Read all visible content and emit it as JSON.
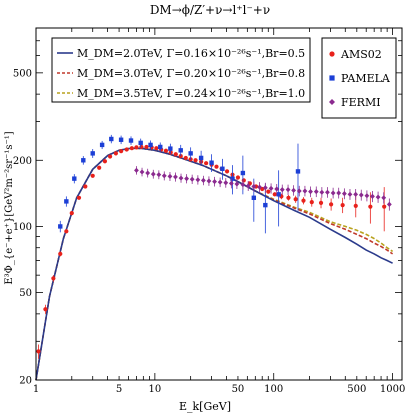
{
  "chart_data": {
    "type": "scatter",
    "title": "DM→ϕ/Z′+ν→l⁺l⁻+ν",
    "xlabel": "E_k[GeV]",
    "ylabel": "E³Φ_{e⁻+e⁺}[GeV²m⁻²sr⁻¹s⁻¹]",
    "xscale": "log",
    "yscale": "log",
    "xlim": [
      1,
      1200
    ],
    "ylim": [
      20,
      800
    ],
    "x_ticks": [
      1,
      5,
      10,
      50,
      100,
      500,
      1000
    ],
    "x_tick_labels": [
      "1",
      "5",
      "10",
      "50",
      "100",
      "500",
      "1000"
    ],
    "y_ticks": [
      20,
      50,
      100,
      200,
      500
    ],
    "y_tick_labels": [
      "20",
      "50",
      "100",
      "200",
      "500"
    ],
    "grid": false,
    "legend_model_lines": [
      {
        "text": "M_DM=2.0TeV, Γ=0.16×10⁻²⁶s⁻¹,Br=0.5",
        "color": "#2b3b8c",
        "dash": "solid"
      },
      {
        "text": "M_DM=3.0TeV, Γ=0.20×10⁻²⁶s⁻¹,Br=0.8",
        "color": "#c0392b",
        "dash": "dashed"
      },
      {
        "text": "M_DM=3.5TeV, Γ=0.24×10⁻²⁶s⁻¹,Br=1.0",
        "color": "#b9a21e",
        "dash": "dashed"
      }
    ],
    "legend_data": [
      {
        "text": "AMS02",
        "color": "#e8211b",
        "marker": "circle"
      },
      {
        "text": "PAMELA",
        "color": "#1c3fd6",
        "marker": "square"
      },
      {
        "text": "FERMI",
        "color": "#8b2a8f",
        "marker": "diamond"
      }
    ],
    "series": [
      {
        "name": "M_DM=3.5TeV, Γ=0.24×10⁻²⁶s⁻¹,Br=1.0",
        "kind": "line",
        "color": "#b9a21e",
        "dash": "dashed",
        "x": [
          1,
          1.3,
          1.7,
          2.2,
          3,
          4,
          5,
          6,
          7,
          8,
          10,
          13,
          17,
          20,
          25,
          30,
          40,
          50,
          70,
          100,
          150,
          200,
          300,
          400,
          500,
          600,
          700,
          800,
          900,
          1000
        ],
        "y": [
          20,
          48,
          88,
          135,
          182,
          210,
          222,
          226,
          227,
          226,
          222,
          214,
          204,
          198,
          190,
          182,
          170,
          160,
          145,
          133,
          122,
          116,
          105,
          100,
          96,
          92,
          88,
          84,
          80,
          77
        ]
      },
      {
        "name": "M_DM=3.0TeV, Γ=0.20×10⁻²⁶s⁻¹,Br=0.8",
        "kind": "line",
        "color": "#c0392b",
        "dash": "dashed",
        "x": [
          1,
          1.3,
          1.7,
          2.2,
          3,
          4,
          5,
          6,
          7,
          8,
          10,
          13,
          17,
          20,
          25,
          30,
          40,
          50,
          70,
          100,
          150,
          200,
          300,
          400,
          500,
          600,
          700,
          800,
          900,
          1000
        ],
        "y": [
          20,
          48,
          88,
          135,
          182,
          210,
          222,
          226,
          227,
          226,
          222,
          214,
          204,
          198,
          190,
          182,
          170,
          160,
          145,
          132,
          121,
          114,
          103,
          97,
          92,
          88,
          84,
          81,
          78,
          75
        ]
      },
      {
        "name": "M_DM=2.0TeV, Γ=0.16×10⁻²⁶s⁻¹,Br=0.5",
        "kind": "line",
        "color": "#2b3b8c",
        "dash": "solid",
        "x": [
          1,
          1.3,
          1.7,
          2.2,
          3,
          4,
          5,
          6,
          7,
          8,
          10,
          13,
          17,
          20,
          25,
          30,
          40,
          50,
          70,
          100,
          150,
          200,
          300,
          400,
          500,
          600,
          700,
          800,
          900,
          1000
        ],
        "y": [
          20,
          48,
          88,
          135,
          182,
          210,
          222,
          226,
          227,
          226,
          222,
          214,
          204,
          198,
          190,
          182,
          170,
          160,
          145,
          131,
          118,
          110,
          97,
          89,
          83,
          78,
          75,
          72,
          70,
          68
        ]
      },
      {
        "name": "AMS02",
        "kind": "points",
        "marker": "circle",
        "color": "#e8211b",
        "x": [
          1.05,
          1.2,
          1.4,
          1.6,
          1.8,
          2.0,
          2.3,
          2.6,
          3.0,
          3.4,
          3.8,
          4.2,
          4.7,
          5.2,
          5.8,
          6.4,
          7.0,
          7.7,
          8.5,
          9.4,
          10.3,
          11.3,
          12.4,
          13.6,
          15,
          16.5,
          18.2,
          20,
          22,
          24.5,
          27,
          30,
          33,
          36.5,
          40.5,
          45,
          50,
          56,
          63,
          71,
          80,
          90,
          102,
          116,
          133,
          153,
          178,
          209,
          250,
          304,
          380,
          490,
          650,
          850
        ],
        "y": [
          27,
          42,
          58,
          75,
          95,
          115,
          135,
          152,
          170,
          185,
          198,
          208,
          215,
          220,
          224,
          227,
          229,
          230,
          230,
          229,
          227,
          224,
          221,
          217,
          213,
          209,
          205,
          202,
          200,
          197,
          194,
          191,
          187,
          183,
          178,
          172,
          167,
          162,
          157,
          152,
          148,
          144,
          140,
          137,
          135,
          133,
          131,
          129,
          128,
          126,
          125,
          124,
          123,
          123
        ],
        "err": [
          2,
          2,
          2,
          2,
          2,
          2,
          2,
          2,
          2,
          2,
          2,
          2,
          2,
          2,
          2,
          2,
          2,
          2,
          2,
          2,
          2,
          2,
          2,
          2,
          2,
          2,
          2,
          2,
          2,
          2,
          2,
          2,
          2,
          2,
          2,
          2,
          2,
          2,
          2,
          3,
          3,
          3,
          3,
          4,
          4,
          5,
          5,
          6,
          7,
          8,
          10,
          14,
          20,
          28
        ]
      },
      {
        "name": "PAMELA",
        "kind": "points",
        "marker": "square",
        "color": "#1c3fd6",
        "x": [
          1.6,
          1.8,
          2.1,
          2.5,
          3.0,
          3.6,
          4.3,
          5.2,
          6.3,
          7.6,
          9.2,
          11.1,
          13.5,
          16.5,
          20,
          24.5,
          30,
          37,
          45,
          55,
          68,
          85,
          110,
          160
        ],
        "y": [
          100,
          130,
          165,
          200,
          215,
          235,
          250,
          248,
          246,
          240,
          235,
          230,
          226,
          222,
          215,
          205,
          195,
          183,
          165,
          175,
          135,
          125,
          140,
          178
        ],
        "err": [
          6,
          7,
          8,
          9,
          10,
          10,
          11,
          11,
          11,
          11,
          11,
          11,
          12,
          13,
          14,
          16,
          18,
          20,
          25,
          35,
          30,
          32,
          40,
          60
        ]
      },
      {
        "name": "FERMI",
        "kind": "points",
        "marker": "diamond",
        "color": "#8b2a8f",
        "x": [
          7.0,
          7.8,
          8.7,
          9.7,
          10.8,
          12.0,
          13.4,
          14.9,
          16.6,
          18.5,
          20.6,
          23,
          25.6,
          28.5,
          31.8,
          35.4,
          39.5,
          44,
          49,
          55,
          61,
          68,
          76,
          85,
          95,
          106,
          118,
          132,
          147,
          164,
          183,
          204,
          228,
          254,
          283,
          316,
          352,
          393,
          438,
          489,
          545,
          608,
          677,
          755,
          842,
          939
        ],
        "y": [
          180,
          177,
          175,
          173,
          172,
          170,
          169,
          168,
          166,
          165,
          164,
          163,
          162,
          161,
          160,
          159,
          158,
          157,
          156,
          155,
          153,
          152,
          151,
          150,
          149,
          148,
          147,
          147,
          146,
          145,
          145,
          144,
          144,
          143,
          143,
          142,
          142,
          141,
          140,
          140,
          139,
          138,
          137,
          136,
          135,
          126
        ],
        "err": [
          8,
          8,
          8,
          8,
          8,
          8,
          8,
          8,
          8,
          8,
          8,
          8,
          8,
          8,
          8,
          8,
          8,
          8,
          8,
          8,
          8,
          8,
          8,
          8,
          8,
          8,
          8,
          8,
          8,
          8,
          8,
          8,
          8,
          8,
          8,
          8,
          8,
          8,
          8,
          8,
          8,
          8,
          8,
          8,
          8,
          8
        ]
      }
    ]
  }
}
